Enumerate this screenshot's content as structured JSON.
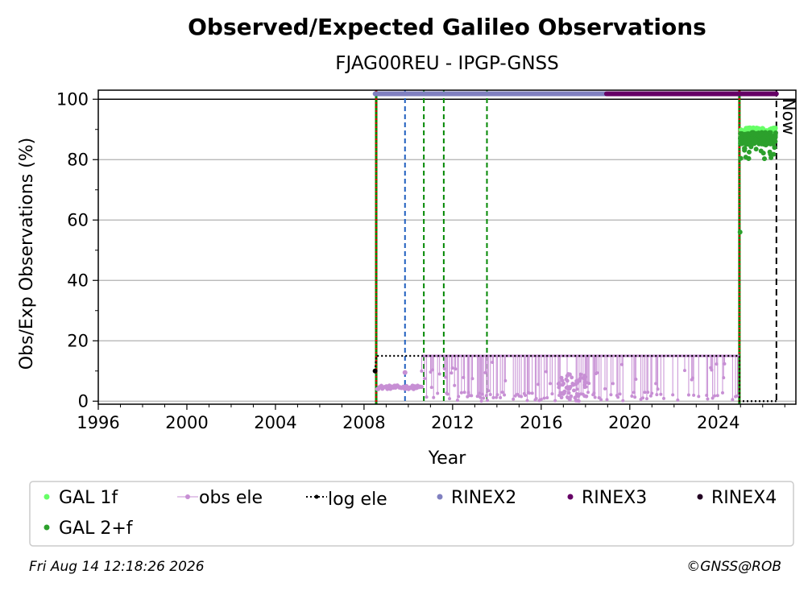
{
  "chart_data": {
    "type": "scatter",
    "title": "Observed/Expected Galileo Observations",
    "subtitle": "FJAG00REU - IPGP-GNSS",
    "xlabel": "Year",
    "ylabel": "Obs/Exp Observations (%)",
    "xlim": [
      1996,
      2027.5
    ],
    "ylim": [
      -1,
      103
    ],
    "xticks": [
      1996,
      2000,
      2004,
      2008,
      2012,
      2016,
      2020,
      2024
    ],
    "yticks": [
      0,
      20,
      40,
      60,
      80,
      100
    ],
    "grid": "horizontal",
    "now_label": "Now",
    "now_year": 2026.62,
    "colors": {
      "gal_1f": "#66ff66",
      "gal_2f": "#2ca02c",
      "obs_ele": "#c78fd4",
      "log_ele": "#000000",
      "rinex2": "#8080c0",
      "rinex3": "#660066",
      "rinex4": "#220022",
      "red_marker": "#dd0000",
      "green_marker": "#008800",
      "blue_marker": "#1f5fbf"
    },
    "vertical_markers": [
      {
        "year": 2008.55,
        "style": "red-dotted"
      },
      {
        "year": 2009.85,
        "style": "blue-dashed"
      },
      {
        "year": 2010.7,
        "style": "green-dashed"
      },
      {
        "year": 2011.6,
        "style": "green-dashed"
      },
      {
        "year": 2013.55,
        "style": "green-dashed"
      },
      {
        "year": 2024.95,
        "style": "red-dotted"
      },
      {
        "year": 2026.62,
        "style": "black-dashed"
      }
    ],
    "rinex_bars": [
      {
        "series": "RINEX2",
        "start": 2008.5,
        "end": 2010.0
      },
      {
        "series": "RINEX2",
        "start": 2010.05,
        "end": 2018.95
      },
      {
        "series": "RINEX3",
        "start": 2018.95,
        "end": 2026.62
      }
    ],
    "log_ele": [
      {
        "x": 2008.5,
        "y": 10
      },
      {
        "x": 2008.55,
        "y": 15
      },
      {
        "x": 2024.95,
        "y": 15
      },
      {
        "x": 2024.95,
        "y": 0
      },
      {
        "x": 2026.62,
        "y": 0
      }
    ],
    "obs_ele": {
      "early_segment": {
        "start": 2008.6,
        "end": 2010.6,
        "level": 5
      },
      "main_segment": {
        "start": 2010.6,
        "end": 2024.95,
        "level": 15
      }
    },
    "gal_2f": {
      "start": 2024.95,
      "end": 2026.62,
      "typical": 87,
      "min": 80,
      "max": 91,
      "outlier": {
        "x": 2024.98,
        "y": 56
      }
    },
    "gal_1f": {
      "start": 2024.95,
      "end": 2026.62,
      "typical": 89
    }
  },
  "legend": {
    "items": [
      {
        "label": "GAL 1f"
      },
      {
        "label": "obs ele"
      },
      {
        "label": "log ele"
      },
      {
        "label": "RINEX2"
      },
      {
        "label": "RINEX3"
      },
      {
        "label": "RINEX4"
      },
      {
        "label": "GAL 2+f"
      }
    ]
  },
  "footer": {
    "timestamp": "Fri Aug 14 12:18:26 2026",
    "credit": "©GNSS@ROB"
  }
}
